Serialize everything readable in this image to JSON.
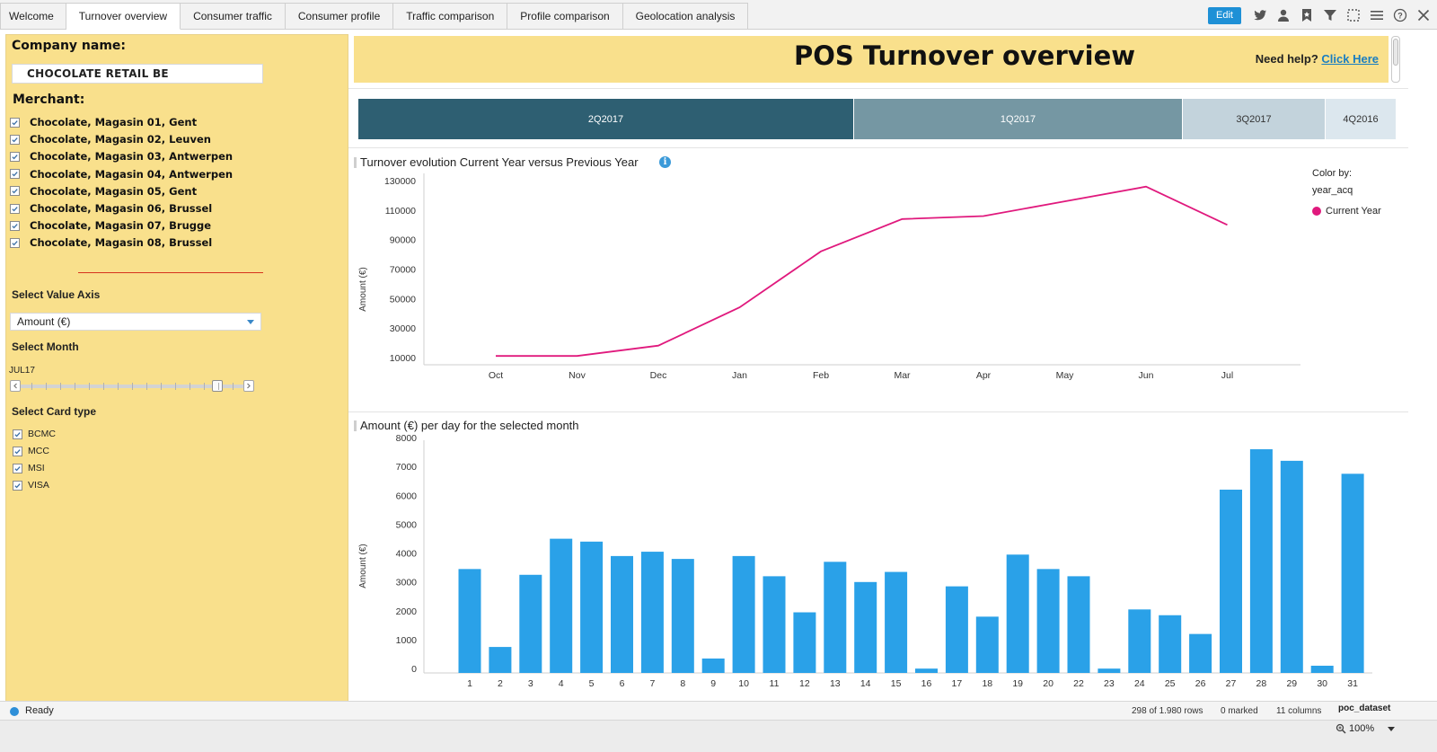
{
  "tabs": [
    {
      "label": "Welcome",
      "active": false
    },
    {
      "label": "Turnover overview",
      "active": true
    },
    {
      "label": "Consumer traffic",
      "active": false
    },
    {
      "label": "Consumer profile",
      "active": false
    },
    {
      "label": "Traffic comparison",
      "active": false
    },
    {
      "label": "Profile comparison",
      "active": false
    },
    {
      "label": "Geolocation analysis",
      "active": false
    }
  ],
  "toolbar": {
    "edit_label": "Edit",
    "icons": [
      "twitter-icon",
      "user-icon",
      "bookmark-icon",
      "filter-icon",
      "marking-icon",
      "menu-icon",
      "help-icon",
      "close-icon"
    ]
  },
  "left_panel": {
    "company_heading": "Company name:",
    "company_value": "CHOCOLATE RETAIL BE",
    "merchant_heading": "Merchant:",
    "merchants": [
      {
        "label": "Chocolate, Magasin 01, Gent",
        "checked": true
      },
      {
        "label": "Chocolate, Magasin 02, Leuven",
        "checked": true
      },
      {
        "label": "Chocolate, Magasin 03, Antwerpen",
        "checked": true
      },
      {
        "label": "Chocolate, Magasin 04, Antwerpen",
        "checked": true
      },
      {
        "label": "Chocolate, Magasin 05, Gent",
        "checked": true
      },
      {
        "label": "Chocolate, Magasin 06, Brussel",
        "checked": true
      },
      {
        "label": "Chocolate, Magasin 07, Brugge",
        "checked": true
      },
      {
        "label": "Chocolate, Magasin 08, Brussel",
        "checked": true
      }
    ],
    "value_axis_heading": "Select Value Axis",
    "value_axis_selected": "Amount (€)",
    "month_heading": "Select Month",
    "month_value": "JUL17",
    "card_heading": "Select Card type",
    "cards": [
      {
        "label": "BCMC",
        "checked": true
      },
      {
        "label": "MCC",
        "checked": true
      },
      {
        "label": "MSI",
        "checked": true
      },
      {
        "label": "VISA",
        "checked": true
      }
    ]
  },
  "banner": {
    "title": "POS Turnover overview",
    "help_prefix": "Need help? ",
    "help_link": "Click Here"
  },
  "colors": {
    "panel_yellow": "#f9e08c",
    "line_current_year": "#e0197d",
    "bar_blue": "#2aa1e8",
    "status_ready": "#2e8fd8"
  },
  "chart_data": [
    {
      "type": "treemap",
      "categories": [
        "2Q2017",
        "1Q2017",
        "3Q2017",
        "4Q2016"
      ],
      "values": [
        552,
        366,
        159,
        79
      ],
      "colors": [
        "#2e5f72",
        "#7597a3",
        "#c3d3dc",
        "#dce7ee"
      ]
    },
    {
      "type": "line",
      "title": "Turnover evolution Current Year versus Previous Year",
      "ylabel": "Amount (€)",
      "xlabel": "",
      "categories": [
        "Oct",
        "Nov",
        "Dec",
        "Jan",
        "Feb",
        "Mar",
        "Apr",
        "May",
        "Jun",
        "Jul"
      ],
      "yticks": [
        10000,
        30000,
        50000,
        70000,
        90000,
        110000,
        130000
      ],
      "ylim": [
        5000,
        135000
      ],
      "legend_title": "Color by:",
      "legend_field": "year_acq",
      "series": [
        {
          "name": "Current Year",
          "values": [
            11000,
            11000,
            18000,
            44000,
            82000,
            104000,
            106000,
            116000,
            126000,
            100000
          ]
        }
      ]
    },
    {
      "type": "bar",
      "title": "Amount (€) per day for the selected month",
      "ylabel": "Amount (€)",
      "xlabel": "",
      "categories": [
        "1",
        "2",
        "3",
        "4",
        "5",
        "6",
        "7",
        "8",
        "9",
        "10",
        "11",
        "12",
        "13",
        "14",
        "15",
        "16",
        "17",
        "18",
        "19",
        "20",
        "22",
        "23",
        "24",
        "25",
        "26",
        "27",
        "28",
        "29",
        "30",
        "31"
      ],
      "values": [
        3600,
        900,
        3400,
        4650,
        4550,
        4050,
        4200,
        3950,
        500,
        4050,
        3350,
        2100,
        3850,
        3150,
        3500,
        150,
        3000,
        1950,
        4100,
        3600,
        3350,
        150,
        2200,
        2000,
        1350,
        6350,
        7750,
        7350,
        250,
        6900
      ],
      "yticks": [
        0,
        1000,
        2000,
        3000,
        4000,
        5000,
        6000,
        7000,
        8000
      ],
      "ylim": [
        0,
        8000
      ]
    }
  ],
  "status": {
    "ready": "Ready",
    "rows": "298 of 1.980 rows",
    "marked": "0 marked",
    "columns": "11 columns",
    "dataset": "poc_dataset",
    "zoom": "100%"
  }
}
